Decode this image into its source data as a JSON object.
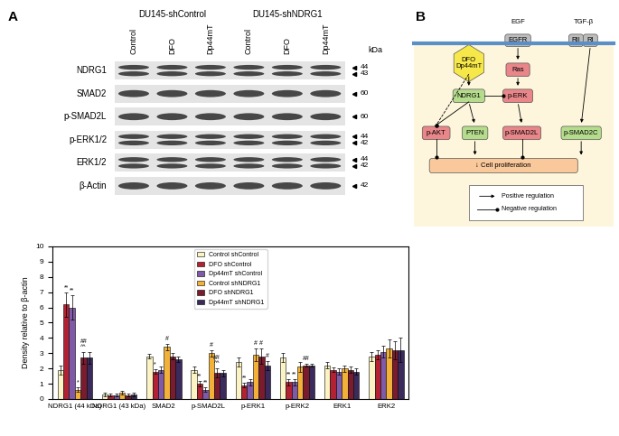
{
  "panel_labels": [
    "A",
    "B"
  ],
  "blot": {
    "groups": [
      "DU145-shControl",
      "DU145-shNDRG1"
    ],
    "lanes": [
      "Control",
      "DFO",
      "Dp44mT",
      "Control",
      "DFO",
      "Dp44mT"
    ],
    "kda_header": "kDa",
    "rows": [
      {
        "name": "NDRG1",
        "kda": [
          44,
          43
        ]
      },
      {
        "name": "SMAD2",
        "kda": [
          60
        ]
      },
      {
        "name": "p-SMAD2L",
        "kda": [
          60
        ]
      },
      {
        "name": "p-ERK1/2",
        "kda": [
          44,
          42
        ]
      },
      {
        "name": "ERK1/2",
        "kda": [
          44,
          42
        ]
      },
      {
        "name": "β-Actin",
        "kda": [
          42
        ]
      }
    ]
  },
  "chart_data": {
    "type": "bar",
    "categories": [
      "NDRG1 (44 kDa)",
      "NDRG1 (43 kDa)",
      "SMAD2",
      "p-SMAD2L",
      "p-ERK1",
      "p-ERK2",
      "ERK1",
      "ERK2"
    ],
    "ylabel": "Density relative to β-actin",
    "ylim": [
      0,
      10
    ],
    "yticks": [
      0,
      1,
      2,
      3,
      4,
      5,
      6,
      7,
      8,
      9,
      10
    ],
    "legend": "upper center",
    "series": [
      {
        "name": "Control shControl",
        "color": "#fbf3c4",
        "values": [
          1.9,
          0.3,
          2.8,
          1.9,
          2.4,
          2.7,
          2.2,
          2.8
        ],
        "errors": [
          0.3,
          0.1,
          0.15,
          0.2,
          0.3,
          0.3,
          0.2,
          0.3
        ]
      },
      {
        "name": "DFO shControl",
        "color": "#b22234",
        "values": [
          6.2,
          0.25,
          1.8,
          1.0,
          0.9,
          1.1,
          1.9,
          2.9
        ],
        "errors": [
          0.8,
          0.1,
          0.15,
          0.2,
          0.15,
          0.2,
          0.15,
          0.3
        ]
      },
      {
        "name": "Dp44mT shControl",
        "color": "#7e5aa8",
        "values": [
          6.0,
          0.25,
          1.9,
          0.6,
          1.1,
          1.1,
          1.8,
          3.1
        ],
        "errors": [
          0.8,
          0.1,
          0.2,
          0.15,
          0.2,
          0.2,
          0.2,
          0.4
        ]
      },
      {
        "name": "Control shNDRG1",
        "color": "#f2b23a",
        "values": [
          0.6,
          0.4,
          3.4,
          3.0,
          2.9,
          2.1,
          2.0,
          3.3
        ],
        "errors": [
          0.15,
          0.1,
          0.2,
          0.2,
          0.4,
          0.3,
          0.2,
          0.6
        ]
      },
      {
        "name": "DFO shNDRG1",
        "color": "#7a1b2e",
        "values": [
          2.7,
          0.25,
          2.8,
          1.7,
          2.8,
          2.2,
          1.9,
          3.2
        ],
        "errors": [
          0.4,
          0.1,
          0.2,
          0.3,
          0.5,
          0.1,
          0.2,
          0.6
        ]
      },
      {
        "name": "Dp44mT shNDRG1",
        "color": "#3b2a5c",
        "values": [
          2.7,
          0.3,
          2.6,
          1.7,
          2.2,
          2.2,
          1.8,
          3.2
        ],
        "errors": [
          0.4,
          0.1,
          0.2,
          0.2,
          0.3,
          0.1,
          0.2,
          0.8
        ]
      }
    ],
    "significance": [
      {
        "category": "NDRG1 (44 kDa)",
        "series": "DFO shControl",
        "text": "**"
      },
      {
        "category": "NDRG1 (44 kDa)",
        "series": "Dp44mT shControl",
        "text": "**"
      },
      {
        "category": "NDRG1 (44 kDa)",
        "series": "Control shNDRG1",
        "text": "*"
      },
      {
        "category": "NDRG1 (44 kDa)",
        "series": "DFO shNDRG1",
        "text": "##\n^^"
      },
      {
        "category": "SMAD2",
        "series": "DFO shControl",
        "text": "*"
      },
      {
        "category": "SMAD2",
        "series": "Control shNDRG1",
        "text": "#"
      },
      {
        "category": "p-SMAD2L",
        "series": "DFO shControl",
        "text": "**"
      },
      {
        "category": "p-SMAD2L",
        "series": "Dp44mT shControl",
        "text": "**"
      },
      {
        "category": "p-SMAD2L",
        "series": "Control shNDRG1",
        "text": "#"
      },
      {
        "category": "p-SMAD2L",
        "series": "DFO shNDRG1",
        "text": "##\n^^"
      },
      {
        "category": "p-ERK1",
        "series": "DFO shControl",
        "text": "**"
      },
      {
        "category": "p-ERK1",
        "series": "Control shNDRG1",
        "text": "#"
      },
      {
        "category": "p-ERK1",
        "series": "DFO shNDRG1",
        "text": "#"
      },
      {
        "category": "p-ERK1",
        "series": "Dp44mT shNDRG1",
        "text": "#"
      },
      {
        "category": "p-ERK2",
        "series": "DFO shControl",
        "text": "**"
      },
      {
        "category": "p-ERK2",
        "series": "Dp44mT shControl",
        "text": "**"
      },
      {
        "category": "p-ERK2",
        "series": "DFO shNDRG1",
        "text": "##"
      }
    ]
  },
  "diagram": {
    "nodes": [
      {
        "label": "EGF"
      },
      {
        "label": "EGFR",
        "color": "#bdbdbd"
      },
      {
        "label": "TGF-β"
      },
      {
        "label": "RII",
        "color": "#bdbdbd"
      },
      {
        "label": "RI",
        "color": "#bdbdbd"
      },
      {
        "label": "DFO\nDp44mT",
        "color": "#f7e84a"
      },
      {
        "label": "Ras",
        "color": "#e8868a"
      },
      {
        "label": "NDRG1",
        "color": "#b5dc8c"
      },
      {
        "label": "p-ERK",
        "color": "#e8868a"
      },
      {
        "label": "p-AKT",
        "color": "#e8868a"
      },
      {
        "label": "PTEN",
        "color": "#b5dc8c"
      },
      {
        "label": "p-SMAD2L",
        "color": "#e8868a"
      },
      {
        "label": "p-SMAD2C",
        "color": "#b5dc8c"
      },
      {
        "label": "↓ Cell proliferation",
        "color": "#f9c89b"
      }
    ],
    "edges": [
      {
        "from": "EGFR",
        "to": "Ras",
        "type": "positive"
      },
      {
        "from": "Ras",
        "to": "p-ERK",
        "type": "positive"
      },
      {
        "from": "DFO\nDp44mT",
        "to": "NDRG1",
        "type": "positive"
      },
      {
        "from": "DFO\nDp44mT",
        "to": "p-AKT",
        "type": "negative",
        "dashed": true
      },
      {
        "from": "NDRG1",
        "to": "p-ERK",
        "type": "negative"
      },
      {
        "from": "NDRG1",
        "to": "p-AKT",
        "type": "negative"
      },
      {
        "from": "NDRG1",
        "to": "PTEN",
        "type": "positive"
      },
      {
        "from": "p-ERK",
        "to": "p-SMAD2L",
        "type": "positive"
      },
      {
        "from": "RI",
        "to": "p-SMAD2C",
        "type": "positive"
      },
      {
        "from": "p-AKT",
        "to": "↓ Cell proliferation",
        "type": "negative"
      },
      {
        "from": "PTEN",
        "to": "↓ Cell proliferation",
        "type": "positive"
      },
      {
        "from": "p-SMAD2L",
        "to": "↓ Cell proliferation",
        "type": "negative"
      },
      {
        "from": "p-SMAD2C",
        "to": "↓ Cell proliferation",
        "type": "positive"
      }
    ],
    "legend": {
      "positive": "Positive regulation",
      "negative": "Negative regulation"
    }
  }
}
